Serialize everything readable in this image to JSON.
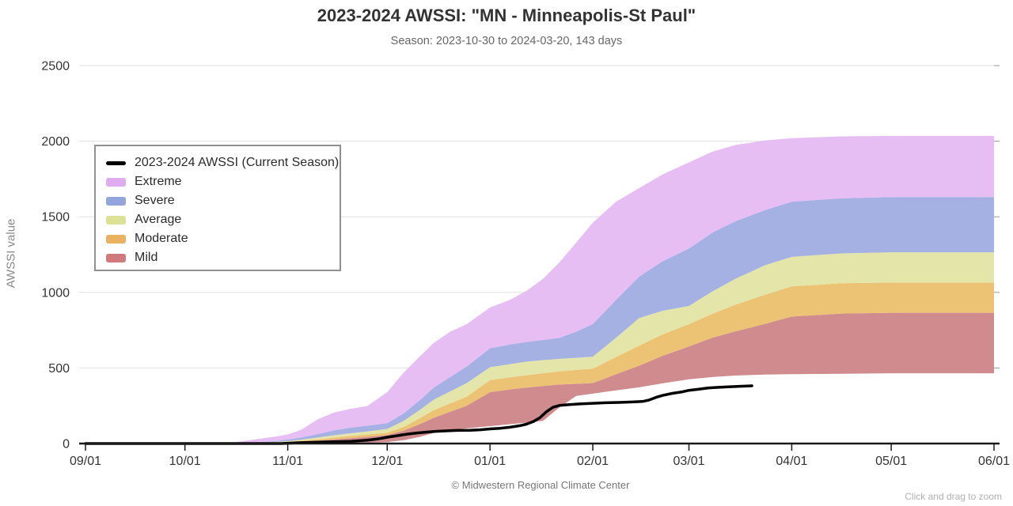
{
  "header": {
    "title": "2023-2024 AWSSI: \"MN - Minneapolis-St Paul\"",
    "subtitle": "Season: 2023-10-30 to 2024-03-20, 143 days"
  },
  "footer": {
    "credit": "© Midwestern Regional Climate Center",
    "zoom_hint": "Click and drag to zoom"
  },
  "legend": {
    "items": [
      {
        "label": "2023-2024 AWSSI (Current Season)",
        "swatch": "line",
        "color": "#000000"
      },
      {
        "label": "Extreme",
        "swatch": "band",
        "color": "#dfacf0"
      },
      {
        "label": "Severe",
        "swatch": "band",
        "color": "#92a5dd"
      },
      {
        "label": "Average",
        "swatch": "band",
        "color": "#dce195"
      },
      {
        "label": "Moderate",
        "swatch": "band",
        "color": "#e8b261"
      },
      {
        "label": "Mild",
        "swatch": "band",
        "color": "#d17a7c"
      }
    ]
  },
  "chart_data": {
    "type": "area",
    "title": "2023-2024 AWSSI: \"MN - Minneapolis-St Paul\"",
    "subtitle": "Season: 2023-10-30 to 2024-03-20, 143 days",
    "ylabel": "AWSSI value",
    "ylim": [
      0,
      2500
    ],
    "yticks": [
      0,
      500,
      1000,
      1500,
      2000,
      2500
    ],
    "xtick_labels": [
      "09/01",
      "10/01",
      "11/01",
      "12/01",
      "01/01",
      "02/01",
      "03/01",
      "04/01",
      "05/01",
      "06/01"
    ],
    "xtick_days": [
      0,
      30,
      61,
      91,
      122,
      153,
      182,
      213,
      243,
      274
    ],
    "x_unit": "days since 09/01",
    "grid": "horizontal",
    "legend_position": "top-left",
    "x_days": [
      0,
      30,
      45,
      52,
      58,
      61,
      65,
      70,
      75,
      80,
      85,
      91,
      96,
      101,
      105,
      110,
      115,
      122,
      128,
      133,
      138,
      143,
      148,
      153,
      160,
      167,
      174,
      182,
      189,
      196,
      205,
      213,
      228,
      243,
      274
    ],
    "boundaries": {
      "base": [
        0,
        0,
        0,
        0,
        0,
        0,
        0,
        1,
        2,
        4,
        6,
        10,
        22,
        45,
        70,
        85,
        100,
        115,
        128,
        138,
        150,
        240,
        315,
        330,
        352,
        372,
        398,
        425,
        440,
        450,
        456,
        459,
        462,
        465,
        465
      ],
      "mild": [
        0,
        0,
        0,
        3,
        5,
        8,
        12,
        19,
        27,
        35,
        44,
        56,
        85,
        130,
        170,
        210,
        250,
        340,
        358,
        370,
        380,
        390,
        395,
        400,
        458,
        515,
        580,
        642,
        700,
        742,
        792,
        840,
        860,
        865,
        865
      ],
      "moderate": [
        0,
        0,
        0,
        4,
        8,
        11,
        18,
        28,
        40,
        50,
        60,
        71,
        110,
        170,
        220,
        265,
        310,
        420,
        438,
        452,
        465,
        478,
        487,
        495,
        572,
        648,
        722,
        790,
        858,
        918,
        985,
        1040,
        1060,
        1065,
        1065
      ],
      "average": [
        0,
        0,
        0,
        5,
        12,
        16,
        25,
        40,
        55,
        68,
        80,
        97,
        150,
        225,
        290,
        345,
        400,
        505,
        525,
        542,
        552,
        560,
        567,
        575,
        700,
        830,
        878,
        910,
        1005,
        1090,
        1180,
        1235,
        1258,
        1265,
        1265
      ],
      "severe": [
        0,
        0,
        0,
        8,
        18,
        26,
        40,
        62,
        88,
        105,
        118,
        135,
        200,
        290,
        370,
        440,
        510,
        630,
        655,
        672,
        685,
        700,
        740,
        790,
        950,
        1105,
        1205,
        1290,
        1395,
        1470,
        1545,
        1600,
        1622,
        1630,
        1630
      ],
      "extreme": [
        0,
        0,
        8,
        30,
        48,
        60,
        90,
        160,
        205,
        230,
        248,
        340,
        470,
        580,
        665,
        740,
        790,
        900,
        950,
        1010,
        1090,
        1200,
        1330,
        1460,
        1600,
        1690,
        1780,
        1860,
        1930,
        1975,
        2005,
        2020,
        2032,
        2035,
        2035
      ]
    },
    "bands": [
      {
        "name": "Mild",
        "lower": "base",
        "upper": "mild",
        "color": "#cf8b8e"
      },
      {
        "name": "Moderate",
        "lower": "mild",
        "upper": "moderate",
        "color": "#ecc274"
      },
      {
        "name": "Average",
        "lower": "moderate",
        "upper": "average",
        "color": "#e3e6a8"
      },
      {
        "name": "Severe",
        "lower": "average",
        "upper": "severe",
        "color": "#a5b0e3"
      },
      {
        "name": "Extreme",
        "lower": "severe",
        "upper": "extreme",
        "color": "#e6bef4"
      }
    ],
    "current_season": {
      "name": "2023-2024 AWSSI (Current Season)",
      "color": "#000000",
      "x_days": [
        0,
        59,
        61,
        65,
        70,
        75,
        80,
        85,
        88,
        91,
        94,
        97,
        100,
        103,
        105,
        108,
        112,
        116,
        119,
        122,
        125,
        128,
        131,
        133,
        135,
        137,
        139,
        141,
        143,
        146,
        149,
        153,
        157,
        161,
        165,
        168,
        170,
        172,
        174,
        177,
        180,
        182,
        185,
        188,
        191,
        194,
        198,
        201
      ],
      "values": [
        0,
        0,
        2,
        6,
        9,
        12,
        14,
        22,
        30,
        42,
        52,
        62,
        70,
        76,
        80,
        83,
        87,
        88,
        91,
        97,
        101,
        108,
        118,
        128,
        145,
        170,
        210,
        240,
        252,
        258,
        262,
        266,
        270,
        272,
        275,
        278,
        288,
        305,
        318,
        332,
        342,
        352,
        360,
        368,
        372,
        375,
        379,
        382
      ]
    }
  }
}
